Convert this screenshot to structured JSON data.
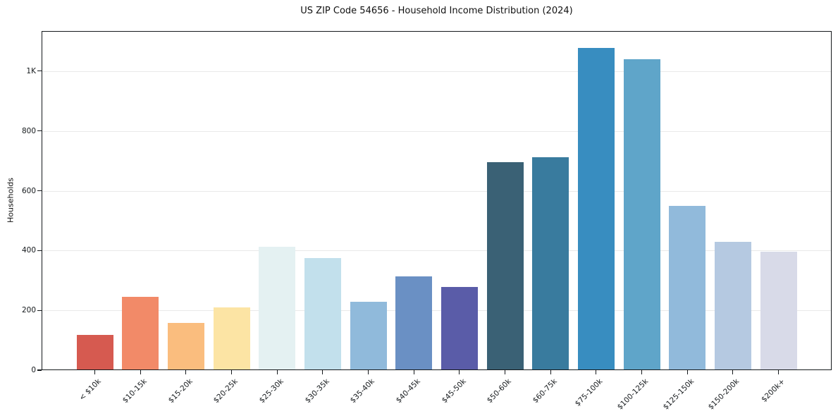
{
  "chart_data": {
    "type": "bar",
    "title": "US ZIP Code 54656 - Household Income Distribution (2024)",
    "xlabel": "",
    "ylabel": "Households",
    "categories": [
      "< $10k",
      "$10-15k",
      "$15-20k",
      "$20-25k",
      "$25-30k",
      "$30-35k",
      "$35-40k",
      "$40-45k",
      "$45-50k",
      "$50-60k",
      "$60-75k",
      "$75-100k",
      "$100-125k",
      "$125-150k",
      "$150-200k",
      "$200k+"
    ],
    "values": [
      118,
      245,
      158,
      210,
      413,
      374,
      228,
      313,
      279,
      695,
      713,
      1078,
      1040,
      549,
      430,
      396
    ],
    "bar_colors": [
      "#d65a50",
      "#f28a68",
      "#fabd7e",
      "#fce4a4",
      "#e4f1f2",
      "#c2e0ec",
      "#90badb",
      "#6a90c4",
      "#5a5ca8",
      "#3a6175",
      "#397b9e",
      "#388dc0",
      "#5fa5c9",
      "#91badb",
      "#b5c9e1",
      "#d8dae8"
    ],
    "yticks": [
      {
        "label": "0",
        "value": 0
      },
      {
        "label": "200",
        "value": 200
      },
      {
        "label": "400",
        "value": 400
      },
      {
        "label": "600",
        "value": 600
      },
      {
        "label": "800",
        "value": 800
      },
      {
        "label": "1K",
        "value": 1000
      }
    ],
    "gridlines": [
      200,
      400,
      600,
      800,
      1000
    ],
    "ylim": [
      0,
      1134
    ],
    "grid": true,
    "legend": "none",
    "background_color": "#ffffff",
    "axis_color": "#15191c",
    "gridline_color": "#e9e9e9"
  }
}
